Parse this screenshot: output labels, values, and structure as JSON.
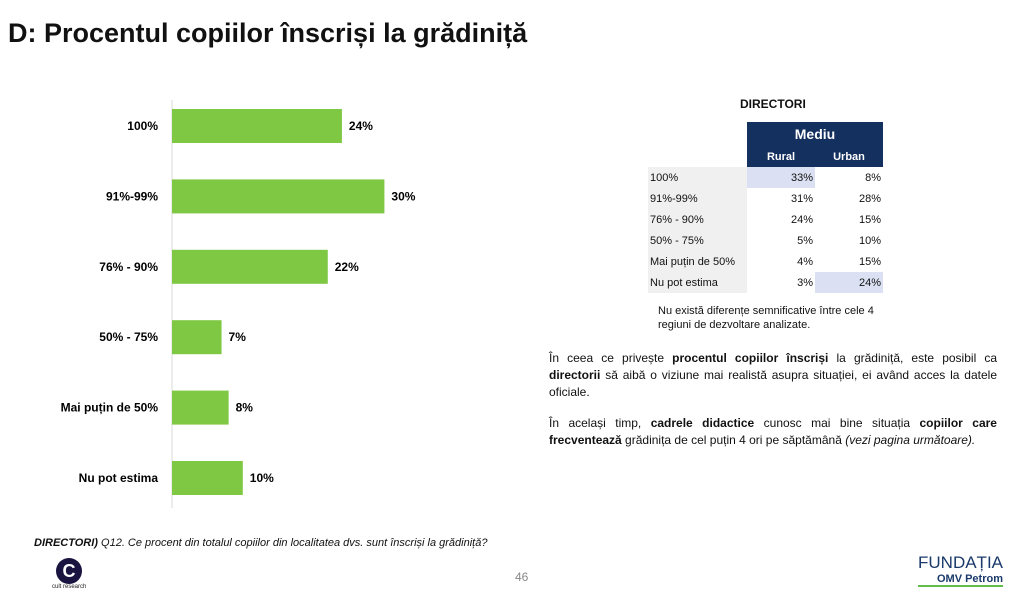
{
  "title": "D: Procentul copiilor înscriși la grădiniță",
  "chart_data": {
    "type": "bar",
    "orientation": "horizontal",
    "categories": [
      "100%",
      "91%-99%",
      "76% - 90%",
      "50% - 75%",
      "Mai puțin de 50%",
      "Nu pot estima"
    ],
    "values": [
      24,
      30,
      22,
      7,
      8,
      10
    ],
    "data_labels": [
      "24%",
      "30%",
      "22%",
      "7%",
      "8%",
      "10%"
    ],
    "xlim": [
      0,
      33
    ],
    "bar_color": "#7ec843",
    "grid": false
  },
  "table": {
    "heading": "DIRECTORI",
    "group_header": "Mediu",
    "columns": [
      "Rural",
      "Urban"
    ],
    "rows": [
      {
        "label": "100%",
        "values": [
          "33%",
          "8%"
        ]
      },
      {
        "label": "91%-99%",
        "values": [
          "31%",
          "28%"
        ]
      },
      {
        "label": "76% - 90%",
        "values": [
          "24%",
          "15%"
        ]
      },
      {
        "label": "50% - 75%",
        "values": [
          "5%",
          "10%"
        ]
      },
      {
        "label": "Mai puțin de 50%",
        "values": [
          "4%",
          "15%"
        ]
      },
      {
        "label": "Nu pot estima",
        "values": [
          "3%",
          "24%"
        ]
      }
    ],
    "note": "Nu există diferențe semnificative între cele 4 regiuni de dezvoltare analizate."
  },
  "text": {
    "p1a": "În ceea ce privește ",
    "p1b": "procentul copiilor înscriși",
    "p1c": " la grădiniță, este posibil ca ",
    "p1d": "directorii",
    "p1e": " să aibă o viziune mai realistă asupra situației, ei având acces la datele oficiale.",
    "p2a": "În același timp, ",
    "p2b": "cadrele didactice",
    "p2c": " cunosc mai bine situația ",
    "p2d": "copiilor care frecventează",
    "p2e": " grădinița de cel puțin 4 ori pe săptămână ",
    "p2f": "(vezi pagina următoare)."
  },
  "question_bold": "DIRECTORI)",
  "question": " Q12. Ce procent din totalul copiilor din localitatea dvs. sunt înscriși la grădiniță?",
  "page_number": "46",
  "logos": {
    "left": "cult research",
    "right_top": "FUNDAȚIA",
    "right_bottom": "OMV Petrom"
  }
}
